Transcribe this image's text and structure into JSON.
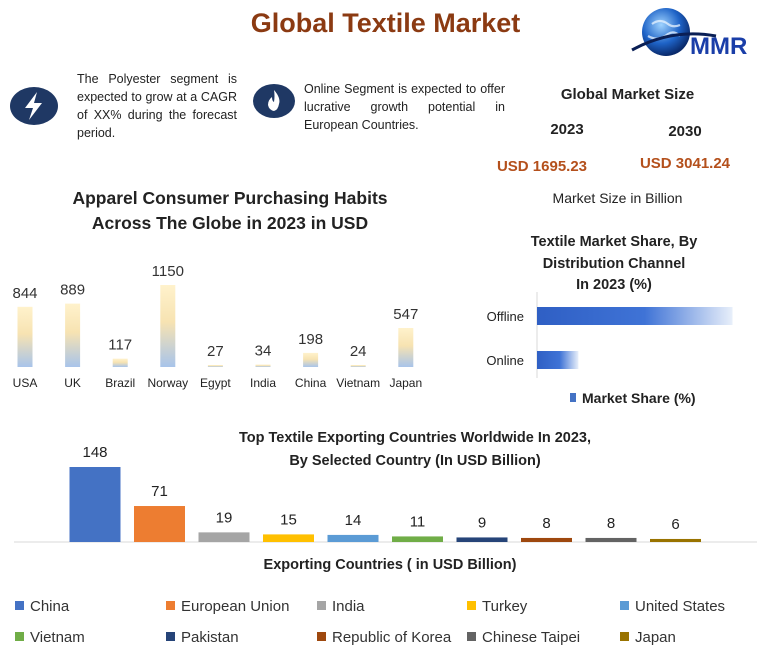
{
  "header": {
    "title": "Global Textile Market",
    "logo_text": "MMR"
  },
  "notes": [
    {
      "icon": "lightning-icon",
      "text": "The Polyester segment is expected to grow at a CAGR of XX% during the forecast period."
    },
    {
      "icon": "flame-icon",
      "text": "Online Segment is expected to offer lucrative growth potential in European Countries."
    }
  ],
  "market_size": {
    "title": "Global Market Size",
    "year_1": "2023",
    "value_1": "USD 1695.23",
    "year_2": "2030",
    "value_2": "USD 3041.24",
    "unit": "Market Size in Billion"
  },
  "colors": {
    "accent": "#8b3a12",
    "value_orange": "#b4501c",
    "bar_blue": "#4472c4",
    "icon_navy": "#1f3864"
  },
  "chart_data": [
    {
      "id": "apparel",
      "type": "bar",
      "title_line1": "Apparel Consumer Purchasing Habits",
      "title_line2": "Across The Globe in 2023 in USD",
      "categories": [
        "USA",
        "UK",
        "Brazil",
        "Norway",
        "Egypt",
        "India",
        "China",
        "Vietnam",
        "Japan"
      ],
      "values": [
        844,
        889,
        117,
        1150,
        27,
        34,
        198,
        24,
        547
      ],
      "ylim": [
        0,
        1150
      ],
      "grid": false
    },
    {
      "id": "distribution",
      "type": "bar",
      "orientation": "horizontal",
      "title_line1": "Textile Market Share, By",
      "title_line2": "Distribution Channel",
      "title_line3": "In 2023 (%)",
      "categories": [
        "Offline",
        "Online"
      ],
      "values": [
        85,
        18
      ],
      "series": [
        {
          "name": "Market Share (%)",
          "values": [
            85,
            18
          ]
        }
      ],
      "legend": "bottom",
      "grid": false
    },
    {
      "id": "exporters",
      "type": "bar",
      "title_line1": "Top Textile Exporting Countries Worldwide In 2023,",
      "title_line2": "By Selected Country (In USD Billion)",
      "xlabel": "Exporting Countries ( in USD Billion)",
      "categories": [
        "China",
        "European Union",
        "India",
        "Turkey",
        "United States",
        "Vietnam",
        "Pakistan",
        "Republic of Korea",
        "Chinese Taipei",
        "Japan"
      ],
      "values": [
        148,
        71,
        19,
        15,
        14,
        11,
        9,
        8,
        8,
        6
      ],
      "colors": [
        "#4472c4",
        "#ed7d31",
        "#a5a5a5",
        "#ffc000",
        "#5b9bd5",
        "#70ad47",
        "#264478",
        "#9e480e",
        "#636363",
        "#997300"
      ],
      "ylim": [
        0,
        148
      ],
      "legend": "bottom",
      "grid": false
    }
  ]
}
